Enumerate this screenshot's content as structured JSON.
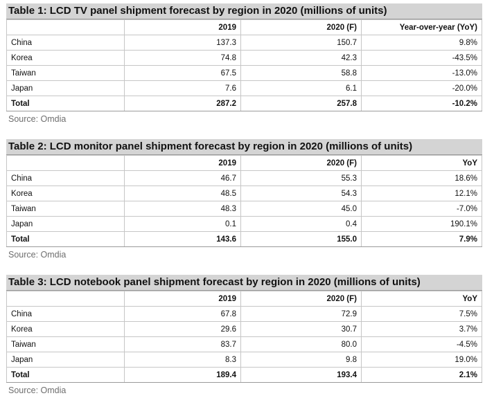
{
  "tables": [
    {
      "title": "Table 1: LCD TV panel shipment forecast by region in 2020 (millions of units)",
      "headers": [
        "",
        "2019",
        "2020 (F)",
        "Year-over-year (YoY)"
      ],
      "rows": [
        [
          "China",
          "137.3",
          "150.7",
          "9.8%"
        ],
        [
          "Korea",
          "74.8",
          "42.3",
          "-43.5%"
        ],
        [
          "Taiwan",
          "67.5",
          "58.8",
          "-13.0%"
        ],
        [
          "Japan",
          "7.6",
          "6.1",
          "-20.0%"
        ]
      ],
      "total": [
        "Total",
        "287.2",
        "257.8",
        "-10.2%"
      ],
      "source": "Source: Omdia"
    },
    {
      "title": "Table 2: LCD monitor panel shipment forecast by region in 2020 (millions of units)",
      "headers": [
        "",
        "2019",
        "2020 (F)",
        "YoY"
      ],
      "rows": [
        [
          "China",
          "46.7",
          "55.3",
          "18.6%"
        ],
        [
          "Korea",
          "48.5",
          "54.3",
          "12.1%"
        ],
        [
          "Taiwan",
          "48.3",
          "45.0",
          "-7.0%"
        ],
        [
          "Japan",
          "0.1",
          "0.4",
          "190.1%"
        ]
      ],
      "total": [
        "Total",
        "143.6",
        "155.0",
        "7.9%"
      ],
      "source": "Source: Omdia"
    },
    {
      "title": "Table 3: LCD notebook panel shipment forecast by region in 2020 (millions of units)",
      "headers": [
        "",
        "2019",
        "2020 (F)",
        "YoY"
      ],
      "rows": [
        [
          "China",
          "67.8",
          "72.9",
          "7.5%"
        ],
        [
          "Korea",
          "29.6",
          "30.7",
          "3.7%"
        ],
        [
          "Taiwan",
          "83.7",
          "80.0",
          "-4.5%"
        ],
        [
          "Japan",
          "8.3",
          "9.8",
          "19.0%"
        ]
      ],
      "total": [
        "Total",
        "189.4",
        "193.4",
        "2.1%"
      ],
      "source": "Source: Omdia"
    }
  ]
}
